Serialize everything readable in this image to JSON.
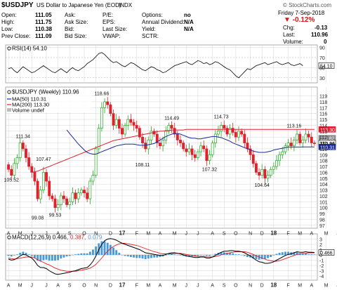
{
  "header": {
    "symbol": "$USDJPY",
    "description": "US Dollar to Japanese Yen (EOD)",
    "exchange": "INDX",
    "brand": "© StockCharts.com",
    "date": "Friday  7-Sep-2018",
    "change_pct": "▼ -0.12%",
    "chg_label": "Chg:",
    "chg_value": "-0.13",
    "last_label": "Last:",
    "last_value": "110.96",
    "volume_label": "Volume:",
    "volume_value": "0",
    "open_label": "Open:",
    "open_value": "111.05",
    "high_label": "High:",
    "high_value": "111.75",
    "low_label": "Low:",
    "low_value": "110.38",
    "prev_label": "Prev Close:",
    "prev_value": "111.09",
    "ask_label": "Ask:",
    "asksize_label": "Ask Size:",
    "bid_label": "Bid:",
    "bidsize_label": "Bid Size:",
    "pe_label": "P/E:",
    "eps_label": "EPS:",
    "lastsize_label": "Last Size:",
    "vwap_label": "VWAP:",
    "options_label": "Options:",
    "options_value": "no",
    "div_label": "Annual Dividend:",
    "div_value": "N/A",
    "yield_label": "Yield:",
    "yield_value": "N/A",
    "sctr_label": "SCTR:"
  },
  "colors": {
    "up": "#22aa22",
    "down": "#e0202a",
    "ma50": "#1a2a9a",
    "ma200": "#e02030",
    "macd": "#000000",
    "signal": "#e02020",
    "hist": "#4a9ad8",
    "rsi": "#000000",
    "grid": "#d4d4d4"
  },
  "chart_data": [
    {
      "type": "line",
      "panel": "rsi",
      "label": "RSI(14) 54.10",
      "value": 54.1,
      "ylim": [
        20,
        95
      ],
      "ticks": [
        30,
        50,
        70,
        90
      ],
      "values": [
        48,
        50,
        44,
        40,
        46,
        52,
        48,
        44,
        40,
        42,
        46,
        50,
        54,
        50,
        46,
        42,
        40,
        44,
        48,
        44,
        40,
        46,
        50,
        46,
        44,
        48,
        52,
        58,
        62,
        66,
        72,
        78,
        80,
        76,
        70,
        64,
        60,
        62,
        58,
        54,
        52,
        56,
        60,
        58,
        54,
        50,
        46,
        44,
        48,
        52,
        50,
        46,
        44,
        40,
        42,
        46,
        50,
        54,
        56,
        58,
        60,
        62,
        58,
        56,
        60,
        64,
        62,
        58,
        60,
        56,
        58,
        62,
        60,
        56,
        52,
        48,
        46,
        40,
        34,
        30,
        36,
        42,
        48,
        46,
        50,
        54,
        56,
        58,
        60,
        56,
        58,
        60,
        62,
        58,
        56,
        58,
        60,
        56,
        54,
        56,
        58,
        54
      ]
    },
    {
      "type": "candlestick",
      "panel": "price",
      "label": "$USDJPY (Weekly) 110.96",
      "legend": [
        {
          "name": "MA(50) 110.31",
          "color": "#1a2a9a"
        },
        {
          "name": "MA(200) 113.30",
          "color": "#e02030"
        },
        {
          "name": "Volume undef",
          "color": "#888888"
        }
      ],
      "ylim": [
        96.5,
        120.5
      ],
      "yticks": [
        97,
        98,
        99,
        100,
        101,
        102,
        103,
        104,
        105,
        106,
        107,
        108,
        109,
        110,
        111,
        112,
        113,
        114,
        115,
        116,
        117,
        118,
        119
      ],
      "badges": [
        {
          "value": "113.30",
          "color": "#e02030"
        },
        {
          "value": "111.82",
          "color": "#888888"
        },
        {
          "value": "110.96",
          "color": "#000000"
        },
        {
          "value": "110.31",
          "color": "#1a2a9a"
        }
      ],
      "annotations": [
        {
          "text": "105.52",
          "week": 1,
          "value": 105.52,
          "pos": "below"
        },
        {
          "text": "111.34",
          "week": 5,
          "value": 111.34,
          "pos": "above"
        },
        {
          "text": "107.47",
          "week": 12,
          "value": 107.47,
          "pos": "above"
        },
        {
          "text": "99.08",
          "week": 10,
          "value": 99.08,
          "pos": "below"
        },
        {
          "text": "99.53",
          "week": 16,
          "value": 99.53,
          "pos": "below"
        },
        {
          "text": "118.66",
          "week": 32,
          "value": 118.66,
          "pos": "above"
        },
        {
          "text": "108.11",
          "week": 46,
          "value": 108.11,
          "pos": "below"
        },
        {
          "text": "114.49",
          "week": 56,
          "value": 114.49,
          "pos": "above"
        },
        {
          "text": "107.32",
          "week": 69,
          "value": 107.32,
          "pos": "below"
        },
        {
          "text": "114.73",
          "week": 73,
          "value": 114.73,
          "pos": "above"
        },
        {
          "text": "104.64",
          "week": 87,
          "value": 104.64,
          "pos": "below"
        },
        {
          "text": "113.16",
          "week": 98,
          "value": 113.16,
          "pos": "above"
        }
      ],
      "closes": [
        106.5,
        105.5,
        107.5,
        108.5,
        111.0,
        110.0,
        108.5,
        107.0,
        106.0,
        104.5,
        101.5,
        103.0,
        106.0,
        104.5,
        102.0,
        101.5,
        100.0,
        100.5,
        102.0,
        101.5,
        100.5,
        101.0,
        102.5,
        101.5,
        102.5,
        103.0,
        102.5,
        101.5,
        104.5,
        105.5,
        110.0,
        113.5,
        117.0,
        118.0,
        117.5,
        116.0,
        114.0,
        115.0,
        113.5,
        112.5,
        114.0,
        115.0,
        114.5,
        114.0,
        113.5,
        112.0,
        111.0,
        110.0,
        111.5,
        113.0,
        112.5,
        111.0,
        110.5,
        111.5,
        113.0,
        114.0,
        113.5,
        112.5,
        111.5,
        111.0,
        110.0,
        109.5,
        110.0,
        109.0,
        108.5,
        109.5,
        110.5,
        110.0,
        108.0,
        109.0,
        111.0,
        112.5,
        113.0,
        114.0,
        113.5,
        112.5,
        113.5,
        112.8,
        112.0,
        113.0,
        112.5,
        111.0,
        110.0,
        109.0,
        107.5,
        106.0,
        105.5,
        106.5,
        105.0,
        105.5,
        106.5,
        107.0,
        108.0,
        109.0,
        109.5,
        110.5,
        111.0,
        110.5,
        111.5,
        112.5,
        111.0,
        111.5,
        112.5,
        112.0,
        111.0,
        110.96
      ],
      "ma50": [
        null,
        null,
        null,
        null,
        null,
        null,
        null,
        null,
        null,
        null,
        null,
        null,
        null,
        null,
        null,
        null,
        null,
        null,
        null,
        null,
        113.2,
        112.6,
        112.0,
        111.4,
        110.8,
        110.3,
        109.8,
        109.4,
        109.2,
        109.1,
        109.1,
        109.3,
        109.5,
        109.7,
        109.9,
        110.1,
        110.3,
        110.5,
        110.6,
        110.7,
        110.8,
        110.8,
        110.8,
        110.8,
        110.7,
        110.6,
        110.6,
        110.6,
        110.7,
        110.8,
        110.9,
        111.2,
        111.5,
        111.8,
        112.1,
        112.3,
        112.5,
        112.6,
        112.6,
        112.5,
        112.3,
        112.1,
        111.9,
        111.8,
        111.8,
        111.7,
        111.7,
        111.8,
        111.9,
        112.0,
        112.1,
        112.1,
        112.0,
        111.9,
        111.7,
        111.5,
        111.3,
        111.0,
        110.8,
        110.6,
        110.4,
        110.2,
        110.0,
        109.8,
        109.6,
        109.5,
        109.4,
        109.4,
        109.4,
        109.5,
        109.6,
        109.8,
        109.9,
        110.0,
        110.1,
        110.2,
        110.3,
        110.3,
        110.3,
        110.3,
        110.3,
        110.31,
        110.31,
        110.31,
        110.31,
        110.31
      ],
      "ma200": [
        null,
        null,
        null,
        null,
        null,
        null,
        null,
        null,
        106.0,
        106.1,
        106.2,
        106.4,
        106.6,
        106.8,
        107.0,
        107.2,
        107.4,
        107.6,
        107.8,
        108.0,
        108.2,
        108.4,
        108.6,
        108.8,
        109.0,
        109.2,
        109.4,
        109.6,
        109.8,
        110.0,
        110.2,
        110.4,
        110.6,
        110.8,
        111.0,
        111.2,
        111.4,
        111.5,
        111.6,
        111.7,
        111.8,
        111.9,
        112.0,
        112.1,
        112.2,
        112.3,
        112.4,
        112.5,
        112.6,
        112.7,
        112.8,
        112.9,
        113.0,
        113.0,
        113.1,
        113.1,
        113.2,
        113.2,
        113.2,
        113.2,
        113.2,
        113.3,
        113.3,
        113.3,
        113.3,
        113.3,
        113.3,
        113.3,
        113.3,
        113.3,
        113.3,
        113.3,
        113.3,
        113.3,
        113.3,
        113.3,
        113.3,
        113.3,
        113.3,
        113.3,
        113.3,
        113.3,
        113.3,
        113.3,
        113.3,
        113.3,
        113.3,
        113.3,
        113.3,
        113.3,
        113.3,
        113.3,
        113.3,
        113.3,
        113.3,
        113.3,
        113.3,
        113.3,
        113.3,
        113.3,
        113.3,
        113.3,
        113.3,
        113.3,
        113.3,
        113.3
      ]
    },
    {
      "type": "line",
      "panel": "macd",
      "label_macd": "MACD(12,26,9) 0.466,",
      "label_signal": "0.387,",
      "label_hist": "0.079",
      "badge": "0.466",
      "ylim": [
        -4.8,
        4.0
      ],
      "yticks": [
        -4,
        -3,
        -2,
        -1,
        0,
        1,
        2,
        3
      ],
      "macd": [
        -0.8,
        -1.0,
        -0.9,
        -0.6,
        -0.2,
        0.1,
        0.0,
        -0.3,
        -0.6,
        -1.2,
        -2.0,
        -2.4,
        -2.4,
        -2.6,
        -3.0,
        -3.3,
        -3.6,
        -3.7,
        -3.6,
        -3.5,
        -3.4,
        -3.3,
        -3.1,
        -3.0,
        -2.8,
        -2.6,
        -2.5,
        -2.4,
        -1.9,
        -1.2,
        -0.2,
        1.0,
        2.0,
        2.7,
        3.0,
        3.1,
        3.0,
        2.8,
        2.5,
        2.2,
        2.0,
        1.8,
        1.6,
        1.4,
        1.2,
        1.0,
        0.7,
        0.4,
        0.3,
        0.2,
        0.1,
        0.0,
        -0.1,
        -0.1,
        0.1,
        0.3,
        0.4,
        0.4,
        0.3,
        0.2,
        0.0,
        -0.2,
        -0.3,
        -0.4,
        -0.5,
        -0.5,
        -0.4,
        -0.4,
        -0.6,
        -0.6,
        -0.4,
        -0.1,
        0.2,
        0.5,
        0.7,
        0.7,
        0.8,
        0.8,
        0.7,
        0.7,
        0.6,
        0.4,
        0.1,
        -0.2,
        -0.6,
        -1.0,
        -1.3,
        -1.4,
        -1.6,
        -1.6,
        -1.5,
        -1.3,
        -1.0,
        -0.7,
        -0.4,
        -0.1,
        0.1,
        0.2,
        0.4,
        0.6,
        0.5,
        0.5,
        0.6,
        0.5,
        0.5,
        0.466
      ],
      "signal": [
        -0.6,
        -0.7,
        -0.8,
        -0.7,
        -0.6,
        -0.5,
        -0.4,
        -0.4,
        -0.4,
        -0.6,
        -0.9,
        -1.2,
        -1.4,
        -1.7,
        -1.9,
        -2.2,
        -2.5,
        -2.7,
        -2.9,
        -3.0,
        -3.1,
        -3.1,
        -3.1,
        -3.1,
        -3.0,
        -2.9,
        -2.8,
        -2.7,
        -2.5,
        -2.2,
        -1.8,
        -1.2,
        -0.6,
        0.1,
        0.7,
        1.2,
        1.6,
        1.9,
        2.1,
        2.2,
        2.2,
        2.1,
        2.0,
        1.9,
        1.8,
        1.6,
        1.4,
        1.2,
        1.0,
        0.8,
        0.6,
        0.5,
        0.3,
        0.2,
        0.2,
        0.2,
        0.2,
        0.3,
        0.3,
        0.3,
        0.2,
        0.1,
        0.0,
        -0.1,
        -0.2,
        -0.3,
        -0.3,
        -0.3,
        -0.4,
        -0.4,
        -0.4,
        -0.3,
        -0.2,
        0.0,
        0.2,
        0.3,
        0.4,
        0.5,
        0.6,
        0.6,
        0.6,
        0.6,
        0.5,
        0.3,
        0.1,
        -0.2,
        -0.4,
        -0.6,
        -0.8,
        -1.0,
        -1.1,
        -1.2,
        -1.2,
        -1.1,
        -0.9,
        -0.7,
        -0.5,
        -0.3,
        -0.1,
        0.1,
        0.2,
        0.3,
        0.3,
        0.4,
        0.4,
        0.387
      ]
    }
  ],
  "x_axis": {
    "labels": [
      "A",
      "M",
      "J",
      "J",
      "A",
      "S",
      "O",
      "N",
      "D",
      "17",
      "F",
      "M",
      "A",
      "M",
      "J",
      "J",
      "A",
      "S",
      "O",
      "N",
      "D",
      "18",
      "F",
      "M",
      "A",
      "M",
      "J",
      "J",
      "A",
      "S"
    ],
    "label_weeks": [
      0,
      4,
      8,
      13,
      17,
      21,
      26,
      30,
      35,
      39,
      44,
      48,
      52,
      57,
      61,
      65,
      70,
      74,
      78,
      83,
      87,
      91,
      96,
      100,
      104,
      109,
      113,
      117,
      122,
      126
    ]
  }
}
